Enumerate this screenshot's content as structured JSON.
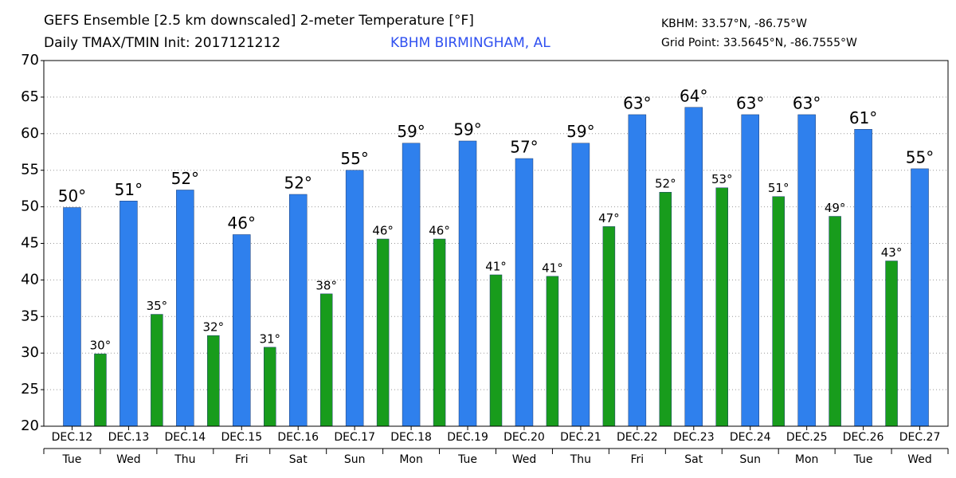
{
  "chart_data": {
    "type": "bar",
    "title": "GEFS Ensemble [2.5 km downscaled] 2-meter Temperature [°F]",
    "subtitle": "Daily TMAX/TMIN Init: 2017121212",
    "station": "KBHM BIRMINGHAM, AL",
    "station_coords": "KBHM: 33.57°N, -86.75°W",
    "grid_point": "Grid Point: 33.5645°N, -86.7555°W",
    "categories": [
      "DEC.12",
      "DEC.13",
      "DEC.14",
      "DEC.15",
      "DEC.16",
      "DEC.17",
      "DEC.18",
      "DEC.19",
      "DEC.20",
      "DEC.21",
      "DEC.22",
      "DEC.23",
      "DEC.24",
      "DEC.25",
      "DEC.26",
      "DEC.27"
    ],
    "weekdays": [
      "Tue",
      "Wed",
      "Thu",
      "Fri",
      "Sat",
      "Sun",
      "Mon",
      "Tue",
      "Wed",
      "Thu",
      "Fri",
      "Sat",
      "Sun",
      "Mon",
      "Tue",
      "Wed"
    ],
    "series": [
      {
        "color": "#2f80ed",
        "values": [
          49.9,
          50.8,
          52.3,
          46.2,
          51.7,
          55.0,
          58.7,
          59.0,
          56.6,
          58.7,
          62.6,
          63.6,
          62.6,
          62.6,
          60.6,
          55.2
        ],
        "value_labels": [
          "50°",
          "51°",
          "52°",
          "46°",
          "52°",
          "55°",
          "59°",
          "59°",
          "57°",
          "59°",
          "63°",
          "64°",
          "63°",
          "63°",
          "61°",
          "55°"
        ]
      },
      {
        "color": "#189c1c",
        "values": [
          29.9,
          35.3,
          32.4,
          30.8,
          38.1,
          45.6,
          45.6,
          40.7,
          40.5,
          47.3,
          52.0,
          52.6,
          51.4,
          48.7,
          42.6,
          null
        ],
        "value_labels": [
          "30°",
          "35°",
          "32°",
          "31°",
          "38°",
          "46°",
          "46°",
          "41°",
          "41°",
          "47°",
          "52°",
          "53°",
          "51°",
          "49°",
          "43°",
          null
        ]
      }
    ],
    "ylim": [
      20,
      70
    ],
    "yticks": [
      20,
      25,
      30,
      35,
      40,
      45,
      50,
      55,
      60,
      65,
      70
    ],
    "grid": true
  }
}
